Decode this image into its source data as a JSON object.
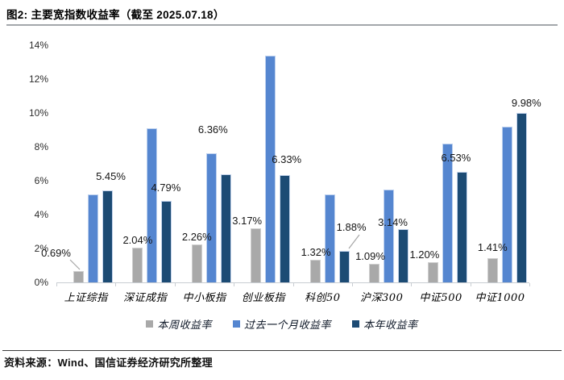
{
  "header": {
    "title": "图2: 主要宽指数收益率（截至 2025.07.18）"
  },
  "footer": {
    "source": "资料来源：Wind、国信证券经济研究所整理"
  },
  "chart_data": {
    "type": "bar",
    "title": "主要宽指数收益率（截至 2025.07.18）",
    "categories": [
      "上证综指",
      "深证成指",
      "中小板指",
      "创业板指",
      "科创50",
      "沪深300",
      "中证500",
      "中证1000"
    ],
    "series": [
      {
        "name": "本周收益率",
        "color": "#a9a9a9",
        "border_color": "#cfcfcf",
        "values": [
          0.69,
          2.04,
          2.26,
          3.17,
          1.32,
          1.09,
          1.2,
          1.41
        ],
        "labels": [
          "0.69%",
          "2.04%",
          "2.26%",
          "3.17%",
          "1.32%",
          "1.09%",
          "1.20%",
          "1.41%"
        ]
      },
      {
        "name": "过去一个月收益率",
        "color": "#5586d0",
        "border_color": "#bcd0ee",
        "values": [
          5.2,
          9.1,
          7.6,
          13.4,
          5.2,
          5.5,
          8.2,
          9.2
        ],
        "labels": null
      },
      {
        "name": "本年收益率",
        "color": "#1c4b74",
        "border_color": "#c4d4ec",
        "values": [
          5.45,
          4.79,
          6.36,
          6.33,
          1.88,
          3.14,
          6.53,
          9.98
        ],
        "labels": [
          "5.45%",
          "4.79%",
          "6.36%",
          "6.33%",
          "1.88%",
          "3.14%",
          "6.53%",
          "9.98%"
        ]
      }
    ],
    "ylim": [
      0,
      14
    ],
    "ytick_step": 2,
    "ytick_labels": [
      "0%",
      "2%",
      "4%",
      "6%",
      "8%",
      "10%",
      "12%",
      "14%"
    ],
    "grid": false,
    "legend_position": "bottom",
    "axis_color": "#c9cdd2",
    "leader_line_color": "#a6a6a6"
  }
}
